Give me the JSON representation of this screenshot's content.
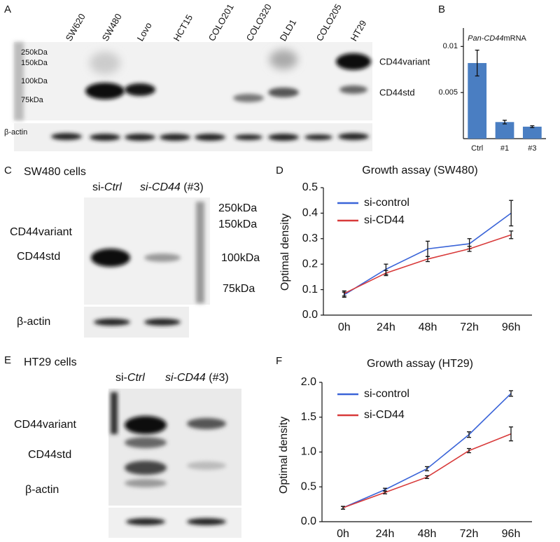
{
  "blots": {
    "panel_a": {
      "letter": "A",
      "lanes": [
        "SW620",
        "SW480",
        "Lovo",
        "HCT15",
        "COLO201",
        "COLO320",
        "DLD1",
        "COLO205",
        "HT29"
      ],
      "markers": [
        "250kDa",
        "150kDa",
        "100kDa",
        "75kDa"
      ],
      "variant": "CD44variant",
      "std": "CD44std",
      "loading": "β-actin"
    },
    "panel_c": {
      "letter": "C",
      "title": "SW480 cells",
      "lane_1": [
        "si-",
        "Ctrl"
      ],
      "lane_2": [
        "si-CD44",
        " (#3)"
      ],
      "markers": [
        "250kDa",
        "150kDa",
        "100kDa",
        "75kDa"
      ],
      "variant": "CD44variant",
      "std": "CD44std",
      "loading": "β-actin"
    },
    "panel_e": {
      "letter": "E",
      "title": "HT29 cells",
      "lane_1": [
        "si-",
        "Ctrl"
      ],
      "lane_2": [
        "si-CD44",
        " (#3)"
      ],
      "variant": "CD44variant",
      "std": "CD44std",
      "loading": "β-actin"
    }
  },
  "chart_data": [
    {
      "type": "bar",
      "panel_label": "B",
      "title": [
        "Pan-CD44",
        "mRNA"
      ],
      "categories": [
        "Ctrl",
        "#1",
        "#3"
      ],
      "values": [
        0.0082,
        0.0018,
        0.0013
      ],
      "errors": [
        0.0014,
        0.0002,
        0.0001
      ],
      "color": "#4a7ec2",
      "ylim": [
        0,
        0.012
      ],
      "yticks": [
        0.005,
        0.01
      ]
    },
    {
      "type": "line",
      "panel_label": "D",
      "title": "Growth assay (SW480)",
      "y_label": "Optimal density",
      "categories": [
        "0h",
        "24h",
        "48h",
        "72h",
        "96h"
      ],
      "ylim": [
        0,
        0.5
      ],
      "yticks": [
        {
          "value": 0,
          "label": "0.0"
        },
        0.1,
        0.2,
        0.3,
        0.4,
        0.5
      ],
      "series": [
        {
          "name": "si-control",
          "color": "#3a64d8",
          "values": [
            0.08,
            0.18,
            0.26,
            0.28,
            0.4
          ],
          "errors": [
            0.01,
            0.02,
            0.03,
            0.02,
            0.05
          ]
        },
        {
          "name": "si-CD44",
          "color": "#d83a3a",
          "values": [
            0.085,
            0.165,
            0.22,
            0.26,
            0.315
          ],
          "errors": [
            0.01,
            0.01,
            0.01,
            0.01,
            0.015
          ]
        }
      ]
    },
    {
      "type": "line",
      "panel_label": "F",
      "title": "Growth assay (HT29)",
      "y_label": "Optimal density",
      "categories": [
        "0h",
        "24h",
        "48h",
        "72h",
        "96h"
      ],
      "ylim": [
        0,
        2
      ],
      "yticks": [
        {
          "value": 0,
          "label": "0.0"
        },
        {
          "value": 0.5,
          "label": "0.5"
        },
        {
          "value": 1,
          "label": "1.0"
        },
        {
          "value": 1.5,
          "label": "1.5"
        },
        {
          "value": 2,
          "label": "2.0"
        }
      ],
      "series": [
        {
          "name": "si-control",
          "color": "#3a64d8",
          "values": [
            0.2,
            0.46,
            0.76,
            1.25,
            1.84
          ],
          "errors": [
            0.02,
            0.02,
            0.03,
            0.04,
            0.04
          ]
        },
        {
          "name": "si-CD44",
          "color": "#d83a3a",
          "values": [
            0.2,
            0.42,
            0.64,
            1.02,
            1.26
          ],
          "errors": [
            0.02,
            0.02,
            0.02,
            0.03,
            0.1
          ]
        }
      ]
    }
  ]
}
